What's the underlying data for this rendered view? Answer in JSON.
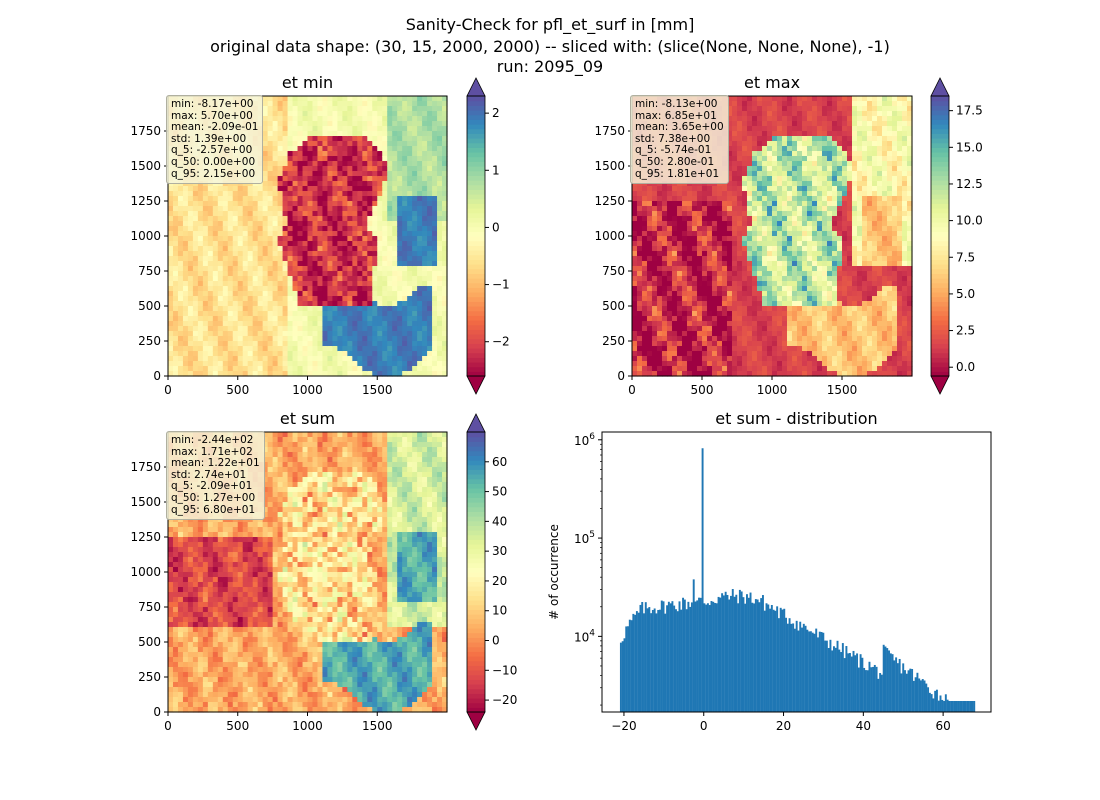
{
  "figure": {
    "title_lines": [
      "Sanity-Check for pfl_et_surf in [mm]",
      "original data shape: (30, 15, 2000, 2000) -- sliced with: (slice(None, None, None), -1)",
      "run: 2095_09"
    ]
  },
  "colors": {
    "colormap": "Spectral",
    "histogram_bar": "#1f77b4",
    "stats_box_bg": "#f5f5dc"
  },
  "chart_data": [
    {
      "type": "heatmap",
      "title": "et min",
      "colormap": "Spectral",
      "xlim": [
        0,
        2000
      ],
      "ylim": [
        0,
        2000
      ],
      "x_ticks": [
        0,
        500,
        1000,
        1500
      ],
      "y_ticks": [
        0,
        250,
        500,
        750,
        1000,
        1250,
        1500,
        1750
      ],
      "colorbar": {
        "vmin": -2.6,
        "vmax": 2.3,
        "extend": "both",
        "ticks": [
          -2,
          -1,
          0,
          1,
          2
        ],
        "tick_labels": [
          "−2",
          "−1",
          "0",
          "1",
          "2"
        ]
      },
      "stats_lines": [
        "min: -8.17e+00",
        "max: 5.70e+00",
        "mean: -2.09e-01",
        "std: 1.39e+00",
        "q_5: -2.57e+00",
        "q_50: 0.00e+00",
        "q_95: 2.15e+00"
      ]
    },
    {
      "type": "heatmap",
      "title": "et max",
      "colormap": "Spectral",
      "xlim": [
        0,
        2000
      ],
      "ylim": [
        0,
        2000
      ],
      "x_ticks": [
        0,
        500,
        1000,
        1500
      ],
      "y_ticks": [
        0,
        250,
        500,
        750,
        1000,
        1250,
        1500,
        1750
      ],
      "colorbar": {
        "vmin": -0.6,
        "vmax": 18.5,
        "extend": "both",
        "ticks": [
          0.0,
          2.5,
          5.0,
          7.5,
          10.0,
          12.5,
          15.0,
          17.5
        ],
        "tick_labels": [
          "0.0",
          "2.5",
          "5.0",
          "7.5",
          "10.0",
          "12.5",
          "15.0",
          "17.5"
        ]
      },
      "stats_lines": [
        "min: -8.13e+00",
        "max: 6.85e+01",
        "mean: 3.65e+00",
        "std: 7.38e+00",
        "q_5: -5.74e-01",
        "q_50: 2.80e-01",
        "q_95: 1.81e+01"
      ]
    },
    {
      "type": "heatmap",
      "title": "et sum",
      "colormap": "Spectral",
      "xlim": [
        0,
        2000
      ],
      "ylim": [
        0,
        2000
      ],
      "x_ticks": [
        0,
        500,
        1000,
        1500
      ],
      "y_ticks": [
        0,
        250,
        500,
        750,
        1000,
        1250,
        1500,
        1750
      ],
      "colorbar": {
        "vmin": -24,
        "vmax": 70,
        "extend": "both",
        "ticks": [
          -20,
          -10,
          0,
          10,
          20,
          30,
          40,
          50,
          60
        ],
        "tick_labels": [
          "−20",
          "−10",
          "0",
          "10",
          "20",
          "30",
          "40",
          "50",
          "60"
        ]
      },
      "stats_lines": [
        "min: -2.44e+02",
        "max: 1.71e+02",
        "mean: 1.22e+01",
        "std: 2.74e+01",
        "q_5: -2.09e+01",
        "q_50: 1.27e+00",
        "q_95: 6.80e+01"
      ]
    },
    {
      "type": "bar",
      "title": "et sum - distribution",
      "ylabel": "# of occurrence",
      "y_scale": "log",
      "xlim": [
        -25.5,
        72
      ],
      "ylim": [
        1700,
        1200000
      ],
      "x_ticks": [
        -20,
        0,
        20,
        40,
        60
      ],
      "x_tick_labels": [
        "−20",
        "0",
        "20",
        "40",
        "60"
      ],
      "y_ticks": [
        10000,
        100000,
        1000000
      ],
      "y_tick_labels": [
        "10^4",
        "10^5",
        "10^6"
      ],
      "bins": {
        "start": -21,
        "end": 68,
        "count": 200
      },
      "peak": {
        "x": -0.2,
        "count": 820000
      },
      "secondary_peak": {
        "x": -2.5,
        "count": 38000
      }
    }
  ]
}
